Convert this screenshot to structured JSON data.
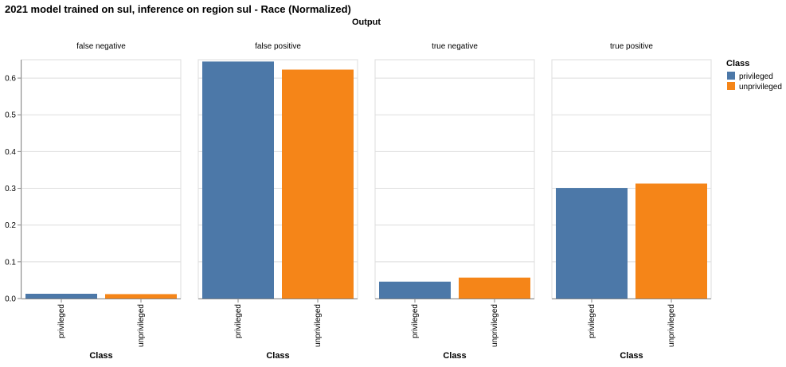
{
  "chart_data": {
    "type": "bar",
    "title": "2021 model trained on sul, inference on region sul - Race (Normalized)",
    "facet_title": "Output",
    "xlabel": "Class",
    "ylabel": "",
    "ylim": [
      0,
      0.65
    ],
    "yticks": [
      "0.0",
      "0.1",
      "0.2",
      "0.3",
      "0.4",
      "0.5",
      "0.6"
    ],
    "categories": [
      "privileged",
      "unprivileged"
    ],
    "grid": true,
    "legend": {
      "title": "Class",
      "position": "right",
      "items": [
        {
          "label": "privileged",
          "color": "#4c78a8"
        },
        {
          "label": "unprivileged",
          "color": "#f58518"
        }
      ]
    },
    "facets": [
      {
        "name": "false negative",
        "values": [
          0.013,
          0.012
        ]
      },
      {
        "name": "false positive",
        "values": [
          0.645,
          0.623
        ]
      },
      {
        "name": "true negative",
        "values": [
          0.046,
          0.057
        ]
      },
      {
        "name": "true positive",
        "values": [
          0.301,
          0.313
        ]
      }
    ]
  }
}
